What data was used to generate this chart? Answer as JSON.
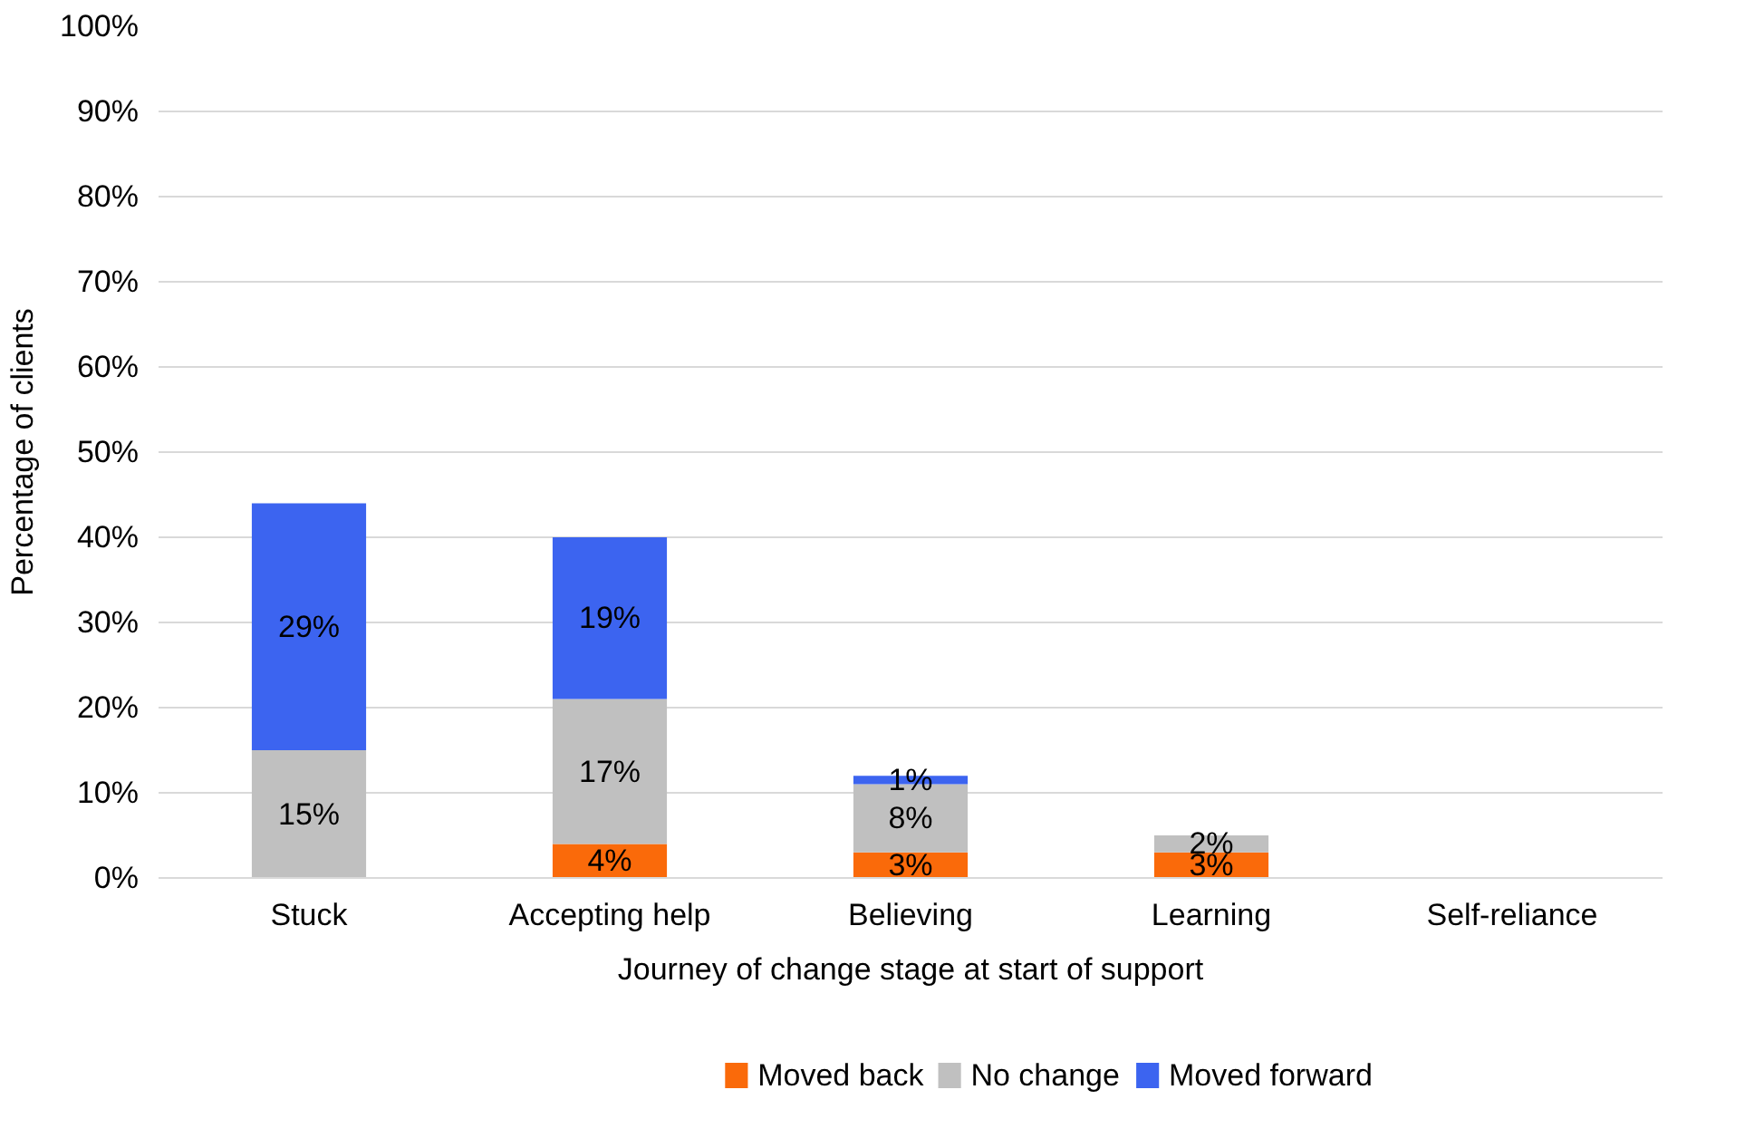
{
  "chart_data": {
    "type": "bar",
    "stacked": true,
    "xlabel": "Journey of change stage at start of support",
    "ylabel": "Percentage of clients",
    "categories": [
      "Stuck",
      "Accepting help",
      "Believing",
      "Learning",
      "Self-reliance"
    ],
    "series": [
      {
        "name": "Moved back",
        "color": "#fa6a0a",
        "values": [
          0,
          4,
          3,
          3,
          0
        ],
        "value_labels": [
          null,
          "4%",
          "3%",
          "3%",
          null
        ]
      },
      {
        "name": "No change",
        "color": "#c0c0c0",
        "values": [
          15,
          17,
          8,
          2,
          0
        ],
        "value_labels": [
          "15%",
          "17%",
          "8%",
          "2%",
          null
        ]
      },
      {
        "name": "Moved forward",
        "color": "#3c64f0",
        "values": [
          29,
          19,
          1,
          0,
          0
        ],
        "value_labels": [
          "29%",
          "19%",
          "1%",
          null,
          null
        ]
      }
    ],
    "ylim": [
      0,
      100
    ],
    "yticks": [
      {
        "value": 0,
        "label": "0%"
      },
      {
        "value": 10,
        "label": "10%"
      },
      {
        "value": 20,
        "label": "20%"
      },
      {
        "value": 30,
        "label": "30%"
      },
      {
        "value": 40,
        "label": "40%"
      },
      {
        "value": 50,
        "label": "50%"
      },
      {
        "value": 60,
        "label": "60%"
      },
      {
        "value": 70,
        "label": "70%"
      },
      {
        "value": 80,
        "label": "80%"
      },
      {
        "value": 90,
        "label": "90%"
      },
      {
        "value": 100,
        "label": "100%"
      }
    ],
    "grid": "y",
    "legend": "bottom"
  }
}
